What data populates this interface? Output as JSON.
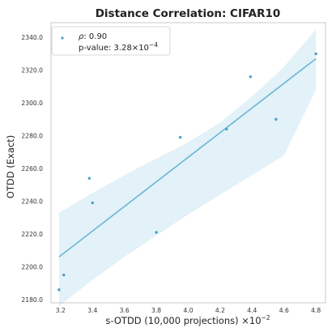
{
  "chart_data": {
    "type": "scatter",
    "title": "Distance Correlation: CIFAR10",
    "xlabel_main": "s-OTDD (10,000 projections) ×10",
    "xlabel_exp": "−2",
    "ylabel": "OTDD (Exact)",
    "xlim": [
      3.14,
      4.86
    ],
    "ylim": [
      2178,
      2349
    ],
    "xticks": [
      3.2,
      3.4,
      3.6,
      3.8,
      4.0,
      4.2,
      4.4,
      4.6,
      4.8
    ],
    "xtick_labels": [
      "3.2",
      "3.4",
      "3.6",
      "3.8",
      "4.0",
      "4.2",
      "4.4",
      "4.6",
      "4.8"
    ],
    "yticks": [
      2180,
      2200,
      2220,
      2240,
      2260,
      2280,
      2300,
      2320,
      2340
    ],
    "ytick_labels": [
      "2180.0",
      "2200.0",
      "2220.0",
      "2240.0",
      "2260.0",
      "2280.0",
      "2300.0",
      "2320.0",
      "2340.0"
    ],
    "grid": false,
    "legend_placement": "top-left",
    "legend": {
      "rho_symbol": "ρ",
      "rho_text": ": 0.90",
      "pvalue_main": "p-value: 3.28×10",
      "pvalue_exp": "−4"
    },
    "points": [
      {
        "x": 3.19,
        "y": 2186
      },
      {
        "x": 3.22,
        "y": 2195
      },
      {
        "x": 3.38,
        "y": 2254
      },
      {
        "x": 3.4,
        "y": 2239
      },
      {
        "x": 3.8,
        "y": 2221
      },
      {
        "x": 3.95,
        "y": 2279
      },
      {
        "x": 4.24,
        "y": 2284
      },
      {
        "x": 4.39,
        "y": 2316
      },
      {
        "x": 4.55,
        "y": 2290
      },
      {
        "x": 4.8,
        "y": 2330
      }
    ],
    "regression": {
      "x0": 3.19,
      "y0": 2206,
      "x1": 4.8,
      "y1": 2327
    },
    "confidence_band": {
      "x": [
        3.19,
        3.4,
        3.6,
        3.8,
        4.0,
        4.2,
        4.4,
        4.6,
        4.8
      ],
      "upper": [
        2233,
        2245,
        2256,
        2266,
        2276,
        2288,
        2304,
        2322,
        2345
      ],
      "lower": [
        2176,
        2192,
        2206,
        2219,
        2232,
        2244,
        2256,
        2268,
        2308
      ]
    },
    "colors": {
      "marker": "#4a9fcc",
      "line": "#6bb6d8",
      "band": "#e3f1f8",
      "frame": "#bdbdbd"
    }
  }
}
